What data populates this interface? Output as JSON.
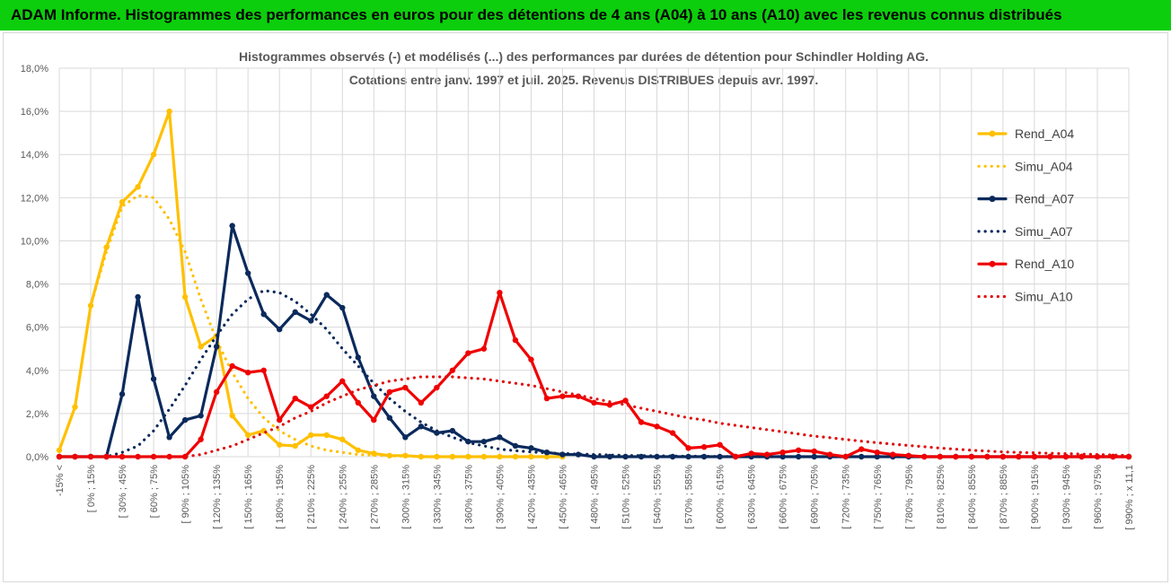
{
  "banner": {
    "title": "ADAM Informe. Histogrammes des performances en euros pour des détentions de 4 ans (A04) à 10 ans (A10) avec les revenus connus distribués"
  },
  "colors": {
    "banner_bg": "#0cce0c",
    "Rend_A04": "#ffc000",
    "Simu_A04": "#ffc000",
    "Rend_A07": "#0b2a5c",
    "Simu_A07": "#0b2a5c",
    "Rend_A10": "#f00000",
    "Simu_A10": "#e01010"
  },
  "chart_data": {
    "type": "line",
    "title": "Histogrammes observés (-) et modélisés (...) des performances par durées de détention pour Schindler Holding AG.",
    "subtitle": "Cotations entre janv. 1997 et juil. 2025. Revenus DISTRIBUES depuis avr. 1997.",
    "ylim": [
      0,
      18
    ],
    "y_ticks": [
      "0,0%",
      "2,0%",
      "4,0%",
      "6,0%",
      "8,0%",
      "10,0%",
      "12,0%",
      "14,0%",
      "16,0%",
      "18,0%"
    ],
    "x_tick_labels": [
      "-15% <",
      "[ 0% ; 15%",
      "[ 30% ; 45%",
      "[ 60% ; 75%",
      "[ 90% ; 105%",
      "[ 120% ; 135%",
      "[ 150% ; 165%",
      "[ 180% ; 195%",
      "[ 210% ; 225%",
      "[ 240% ; 255%",
      "[ 270% ; 285%",
      "[ 300% ; 315%",
      "[ 330% ; 345%",
      "[ 360% ; 375%",
      "[ 390% ; 405%",
      "[ 420% ; 435%",
      "[ 450% ; 465%",
      "[ 480% ; 495%",
      "[ 510% ; 525%",
      "[ 540% ; 555%",
      "[ 570% ; 585%",
      "[ 600% ; 615%",
      "[ 630% ; 645%",
      "[ 660% ; 675%",
      "[ 690% ; 705%",
      "[ 720% ; 735%",
      "[ 750% ; 765%",
      "[ 780% ; 795%",
      "[ 810% ; 825%",
      "[ 840% ; 855%",
      "[ 870% ; 885%",
      "[ 900% ; 915%",
      "[ 930% ; 945%",
      "[ 960% ; 975%",
      "[ 990% ; x 11,1"
    ],
    "grid": true,
    "legend_position": "right",
    "series": [
      {
        "name": "Rend_A04",
        "style": "solid",
        "markers": true,
        "values": [
          0.3,
          2.3,
          7.0,
          9.7,
          11.8,
          12.5,
          14.0,
          16.0,
          7.4,
          5.1,
          5.6,
          1.9,
          1.0,
          1.2,
          0.55,
          0.5,
          1.0,
          1.0,
          0.8,
          0.3,
          0.15,
          0.05,
          0.05,
          0.0,
          0.0,
          0.0,
          0.0,
          0.0,
          0.0,
          0.0,
          0.0,
          0.0,
          0.0
        ]
      },
      {
        "name": "Simu_A04",
        "style": "dotted",
        "markers": false,
        "values": [
          0.3,
          2.3,
          7.0,
          9.5,
          11.6,
          12.1,
          12.0,
          11.0,
          9.5,
          7.3,
          5.4,
          3.9,
          2.7,
          1.8,
          1.2,
          0.8,
          0.5,
          0.3,
          0.2,
          0.1,
          0.07,
          0.04,
          0.02,
          0.01,
          0.0,
          0.0,
          0.0,
          0.0,
          0.0,
          0.0,
          0.0,
          0.0,
          0.0
        ]
      },
      {
        "name": "Rend_A07",
        "style": "solid",
        "markers": true,
        "values": [
          0,
          0,
          0,
          0,
          2.9,
          7.4,
          3.6,
          0.9,
          1.7,
          1.9,
          5.1,
          10.7,
          8.5,
          6.6,
          5.9,
          6.7,
          6.3,
          7.5,
          6.9,
          4.6,
          2.8,
          1.8,
          0.9,
          1.4,
          1.1,
          1.2,
          0.7,
          0.7,
          0.9,
          0.5,
          0.4,
          0.2,
          0.1,
          0.1,
          0,
          0,
          0,
          0,
          0,
          0,
          0,
          0,
          0,
          0,
          0,
          0,
          0,
          0,
          0,
          0,
          0,
          0,
          0,
          0,
          0,
          0,
          0,
          0,
          0,
          0,
          0,
          0,
          0,
          0,
          0,
          0,
          0,
          0,
          0
        ]
      },
      {
        "name": "Simu_A07",
        "style": "dotted",
        "markers": false,
        "values": [
          0,
          0,
          0,
          0,
          0.2,
          0.5,
          1.2,
          2.2,
          3.3,
          4.5,
          5.6,
          6.6,
          7.3,
          7.7,
          7.6,
          7.2,
          6.6,
          5.9,
          5.0,
          4.2,
          3.4,
          2.7,
          2.1,
          1.6,
          1.2,
          0.9,
          0.65,
          0.5,
          0.35,
          0.28,
          0.22,
          0.18,
          0.15,
          0.12,
          0.1,
          0.08,
          0.06,
          0.05,
          0.04,
          0.03,
          0.02,
          0.02,
          0.01,
          0.01,
          0,
          0,
          0,
          0,
          0,
          0,
          0,
          0,
          0,
          0,
          0,
          0,
          0,
          0,
          0,
          0,
          0,
          0,
          0,
          0,
          0,
          0,
          0,
          0,
          0
        ]
      },
      {
        "name": "Rend_A10",
        "style": "solid",
        "markers": true,
        "values": [
          0,
          0,
          0,
          0,
          0,
          0,
          0,
          0,
          0,
          0.8,
          3.0,
          4.2,
          3.9,
          4.0,
          1.7,
          2.7,
          2.3,
          2.8,
          3.5,
          2.5,
          1.7,
          3.0,
          3.2,
          2.5,
          3.2,
          4.0,
          4.8,
          5.0,
          7.6,
          5.4,
          4.5,
          2.7,
          2.8,
          2.8,
          2.5,
          2.4,
          2.6,
          1.6,
          1.4,
          1.1,
          0.4,
          0.45,
          0.55,
          0.0,
          0.15,
          0.1,
          0.2,
          0.3,
          0.25,
          0.1,
          0.0,
          0.35,
          0.2,
          0.1,
          0.05,
          0.0,
          0.0,
          0.0,
          0.0,
          0.0,
          0.0,
          0.0,
          0.0,
          0.0,
          0.0,
          0.0,
          0.0,
          0.0,
          0.0
        ]
      },
      {
        "name": "Simu_A10",
        "style": "dotted",
        "markers": false,
        "values": [
          0,
          0,
          0,
          0,
          0,
          0,
          0,
          0,
          0,
          0.1,
          0.3,
          0.5,
          0.8,
          1.1,
          1.4,
          1.8,
          2.1,
          2.5,
          2.8,
          3.1,
          3.3,
          3.5,
          3.6,
          3.7,
          3.7,
          3.7,
          3.65,
          3.6,
          3.5,
          3.4,
          3.3,
          3.15,
          3.0,
          2.85,
          2.7,
          2.55,
          2.4,
          2.25,
          2.1,
          1.95,
          1.8,
          1.7,
          1.55,
          1.45,
          1.35,
          1.25,
          1.15,
          1.05,
          0.95,
          0.88,
          0.8,
          0.72,
          0.65,
          0.58,
          0.52,
          0.46,
          0.4,
          0.35,
          0.3,
          0.26,
          0.22,
          0.2,
          0.18,
          0.16,
          0.14,
          0.12,
          0.1,
          0.08,
          0.05
        ]
      }
    ]
  }
}
